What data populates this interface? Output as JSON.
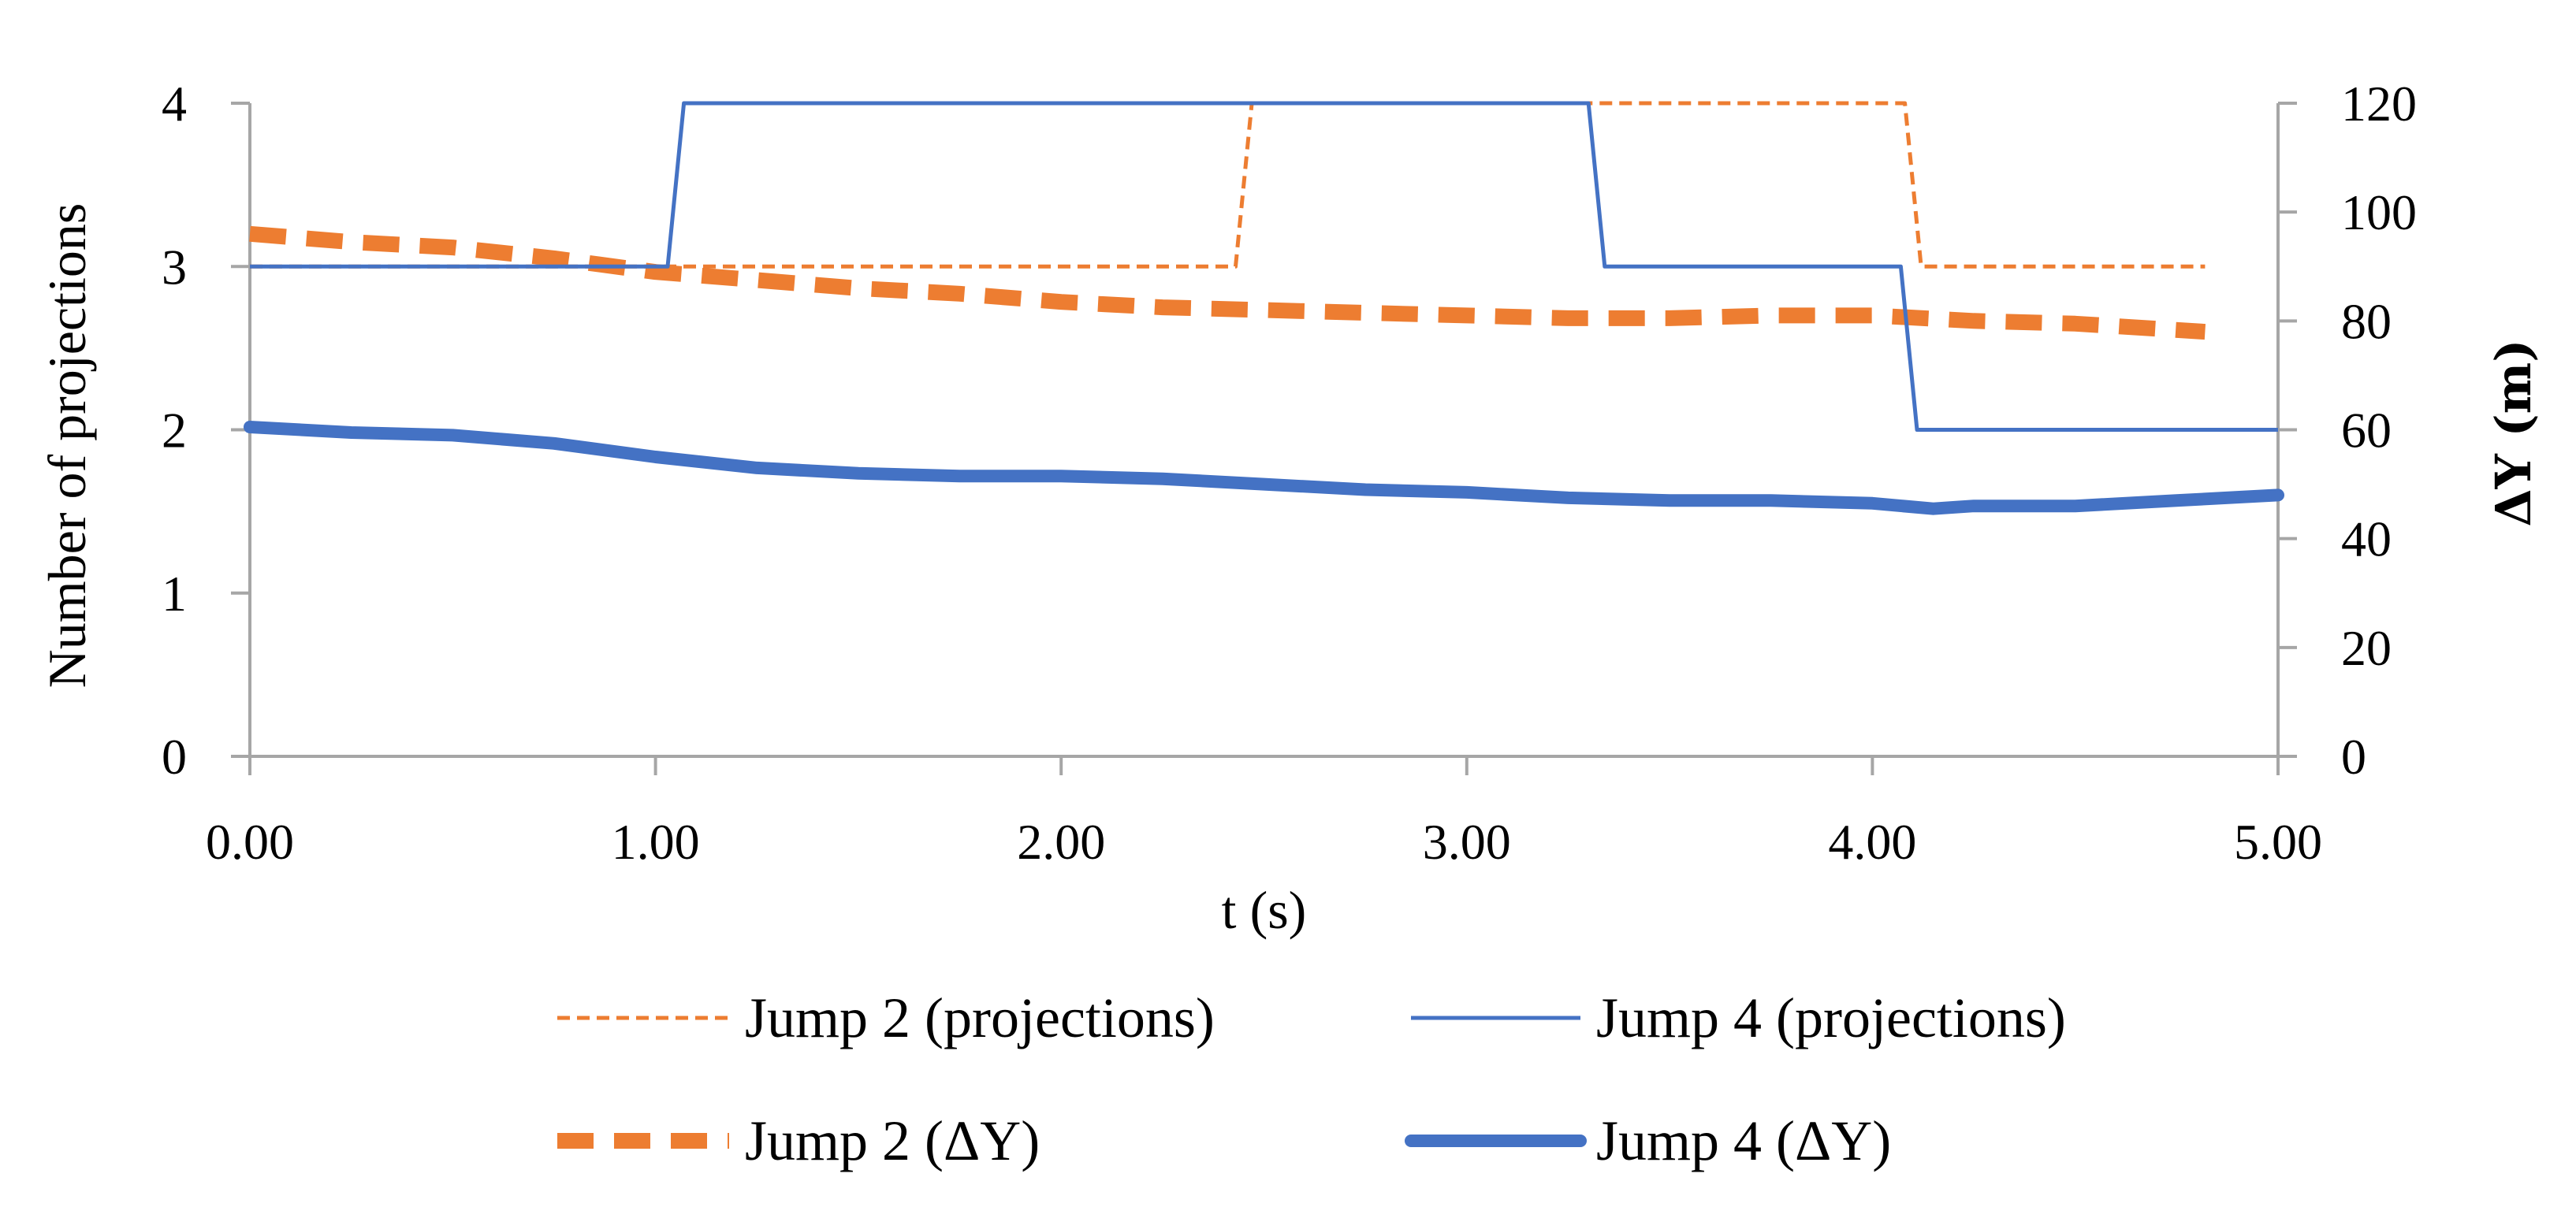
{
  "chart_data": {
    "type": "line",
    "title": "",
    "xlabel": "t (s)",
    "ylabel_left": "Number of projections",
    "ylabel_right": "ΔY (m)",
    "xlim": [
      0,
      5
    ],
    "ylim_left": [
      0,
      4
    ],
    "ylim_right": [
      0,
      120
    ],
    "x_ticks": [
      "0.00",
      "1.00",
      "2.00",
      "3.00",
      "4.00",
      "5.00"
    ],
    "x_tick_values": [
      0,
      1,
      2,
      3,
      4,
      5
    ],
    "y_left_ticks": [
      "0",
      "1",
      "2",
      "3",
      "4"
    ],
    "y_left_tick_values": [
      0,
      1,
      2,
      3,
      4
    ],
    "y_right_ticks": [
      "0",
      "20",
      "40",
      "60",
      "80",
      "100",
      "120"
    ],
    "y_right_tick_values": [
      0,
      20,
      40,
      60,
      80,
      100,
      120
    ],
    "grid": false,
    "legend_position": "bottom",
    "series": [
      {
        "name": "Jump 2 (projections)",
        "axis": "left",
        "color": "#ED7D31",
        "style": "dashed-thin",
        "x": [
          0.0,
          2.43,
          2.47,
          3.3,
          4.08,
          4.12,
          4.82
        ],
        "values": [
          3,
          3,
          4,
          4,
          4,
          3,
          3
        ]
      },
      {
        "name": "Jump 4 (projections)",
        "axis": "left",
        "color": "#4472C4",
        "style": "solid-thin",
        "x": [
          0.0,
          1.03,
          1.07,
          3.3,
          3.34,
          4.07,
          4.11,
          5.0
        ],
        "values": [
          3,
          3,
          4,
          4,
          3,
          3,
          2,
          2
        ]
      },
      {
        "name": "Jump 2 (ΔY)",
        "axis": "right",
        "color": "#ED7D31",
        "style": "dashed-thick",
        "x": [
          0.0,
          0.25,
          0.5,
          0.75,
          1.0,
          1.25,
          1.5,
          1.75,
          2.0,
          2.25,
          2.5,
          2.75,
          3.0,
          3.25,
          3.5,
          3.75,
          4.0,
          4.25,
          4.5,
          4.82
        ],
        "values": [
          96,
          94.5,
          93.5,
          91.5,
          89,
          87.5,
          86,
          85,
          83.5,
          82.5,
          82,
          81.5,
          81,
          80.5,
          80.5,
          81,
          81,
          80,
          79.5,
          78
        ]
      },
      {
        "name": "Jump 4 (ΔY)",
        "axis": "right",
        "color": "#4472C4",
        "style": "solid-thick",
        "x": [
          0.0,
          0.25,
          0.5,
          0.75,
          1.0,
          1.25,
          1.5,
          1.75,
          2.0,
          2.25,
          2.5,
          2.75,
          3.0,
          3.25,
          3.5,
          3.75,
          4.0,
          4.15,
          4.25,
          4.5,
          4.75,
          5.0
        ],
        "values": [
          60.5,
          59.5,
          59,
          57.5,
          55,
          53,
          52,
          51.5,
          51.5,
          51,
          50,
          49,
          48.5,
          47.5,
          47,
          47,
          46.5,
          45.5,
          46,
          46,
          47,
          48
        ]
      }
    ]
  }
}
